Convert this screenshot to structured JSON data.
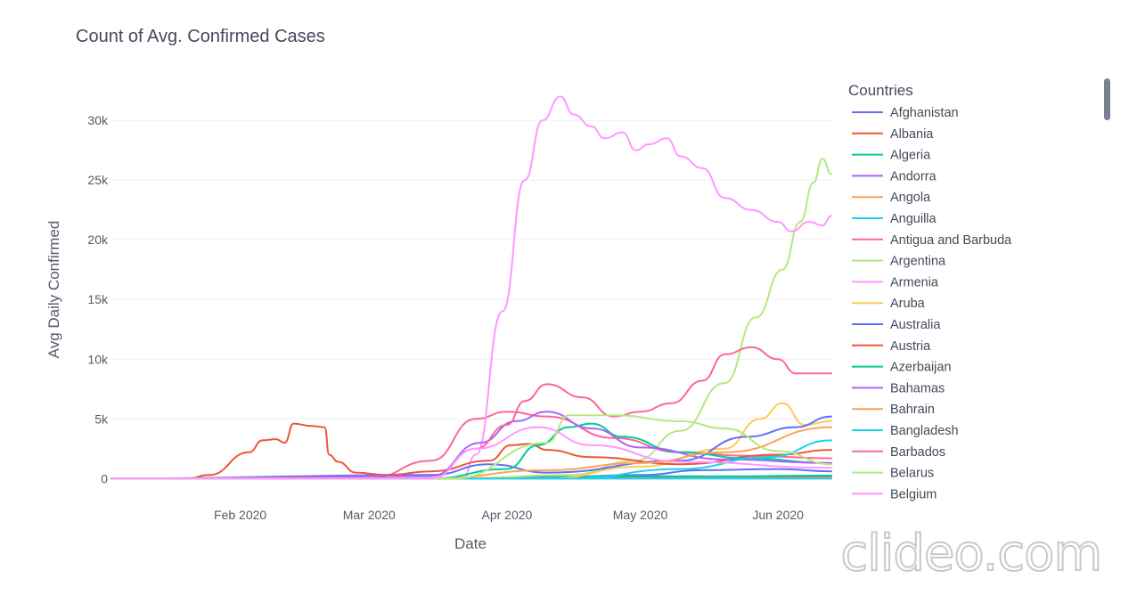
{
  "chart_data": {
    "type": "line",
    "title": "Count of Avg. Confirmed Cases",
    "xlabel": "Date",
    "ylabel": "Avg Daily Confirmed",
    "xlim": [
      "2020-01-03",
      "2020-06-13"
    ],
    "ylim": [
      -800,
      33000
    ],
    "xticks": [
      {
        "date": "2020-02-01",
        "label": "Feb 2020"
      },
      {
        "date": "2020-03-01",
        "label": "Mar 2020"
      },
      {
        "date": "2020-04-01",
        "label": "Apr 2020"
      },
      {
        "date": "2020-05-01",
        "label": "May 2020"
      },
      {
        "date": "2020-06-01",
        "label": "Jun 2020"
      }
    ],
    "yticks": [
      {
        "value": 0,
        "label": "0"
      },
      {
        "value": 5000,
        "label": "5k"
      },
      {
        "value": 10000,
        "label": "10k"
      },
      {
        "value": 15000,
        "label": "15k"
      },
      {
        "value": 20000,
        "label": "20k"
      },
      {
        "value": 25000,
        "label": "25k"
      },
      {
        "value": 30000,
        "label": "30k"
      }
    ],
    "legend_title": "Countries",
    "legend_position": "right",
    "series": [
      {
        "name": "Afghanistan",
        "color": "#636efa",
        "points": [
          [
            "2020-01-03",
            0
          ],
          [
            "2020-03-20",
            0
          ],
          [
            "2020-04-10",
            100
          ],
          [
            "2020-05-01",
            300
          ],
          [
            "2020-05-15",
            700
          ],
          [
            "2020-06-01",
            800
          ],
          [
            "2020-06-13",
            600
          ]
        ]
      },
      {
        "name": "Albania",
        "color": "#ef553b",
        "points": [
          [
            "2020-01-03",
            0
          ],
          [
            "2020-03-20",
            0
          ],
          [
            "2020-04-15",
            50
          ],
          [
            "2020-05-15",
            100
          ],
          [
            "2020-06-13",
            150
          ]
        ]
      },
      {
        "name": "Algeria",
        "color": "#00cc96",
        "points": [
          [
            "2020-01-03",
            0
          ],
          [
            "2020-03-20",
            0
          ],
          [
            "2020-04-10",
            150
          ],
          [
            "2020-05-01",
            200
          ],
          [
            "2020-05-20",
            180
          ],
          [
            "2020-06-13",
            250
          ]
        ]
      },
      {
        "name": "Andorra",
        "color": "#ab63fa",
        "points": [
          [
            "2020-01-03",
            0
          ],
          [
            "2020-03-20",
            0
          ],
          [
            "2020-04-10",
            50
          ],
          [
            "2020-06-13",
            0
          ]
        ]
      },
      {
        "name": "Angola",
        "color": "#ffa15a",
        "points": [
          [
            "2020-01-03",
            0
          ],
          [
            "2020-05-01",
            0
          ],
          [
            "2020-06-13",
            50
          ]
        ]
      },
      {
        "name": "Anguilla",
        "color": "#19d3f3",
        "points": [
          [
            "2020-01-03",
            0
          ],
          [
            "2020-06-13",
            0
          ]
        ]
      },
      {
        "name": "Antigua and Barbuda",
        "color": "#ff6692",
        "points": [
          [
            "2020-01-03",
            0
          ],
          [
            "2020-03-01",
            0
          ],
          [
            "2020-03-15",
            1500
          ],
          [
            "2020-03-25",
            5000
          ],
          [
            "2020-04-01",
            5600
          ],
          [
            "2020-04-10",
            5200
          ],
          [
            "2020-04-25",
            3400
          ],
          [
            "2020-05-10",
            2200
          ],
          [
            "2020-05-25",
            1900
          ],
          [
            "2020-06-13",
            1700
          ]
        ]
      },
      {
        "name": "Argentina",
        "color": "#b6e880",
        "points": [
          [
            "2020-01-03",
            0
          ],
          [
            "2020-03-20",
            0
          ],
          [
            "2020-04-15",
            300
          ],
          [
            "2020-04-30",
            1500
          ],
          [
            "2020-05-10",
            4000
          ],
          [
            "2020-05-20",
            8000
          ],
          [
            "2020-05-27",
            13500
          ],
          [
            "2020-06-02",
            17500
          ],
          [
            "2020-06-06",
            21500
          ],
          [
            "2020-06-09",
            24800
          ],
          [
            "2020-06-11",
            26800
          ],
          [
            "2020-06-13",
            25500
          ]
        ]
      },
      {
        "name": "Armenia",
        "color": "#ff97ff",
        "points": [
          [
            "2020-01-03",
            0
          ],
          [
            "2020-03-22",
            0
          ],
          [
            "2020-03-25",
            2000
          ],
          [
            "2020-03-31",
            14000
          ],
          [
            "2020-04-05",
            25000
          ],
          [
            "2020-04-09",
            30000
          ],
          [
            "2020-04-13",
            32000
          ],
          [
            "2020-04-16",
            30500
          ],
          [
            "2020-04-20",
            29500
          ],
          [
            "2020-04-23",
            28500
          ],
          [
            "2020-04-27",
            29000
          ],
          [
            "2020-04-30",
            27500
          ],
          [
            "2020-05-03",
            28000
          ],
          [
            "2020-05-07",
            28500
          ],
          [
            "2020-05-10",
            27000
          ],
          [
            "2020-05-15",
            26000
          ],
          [
            "2020-05-20",
            23500
          ],
          [
            "2020-05-26",
            22500
          ],
          [
            "2020-06-01",
            21500
          ],
          [
            "2020-06-04",
            20700
          ],
          [
            "2020-06-08",
            21500
          ],
          [
            "2020-06-11",
            21200
          ],
          [
            "2020-06-13",
            22000
          ]
        ]
      },
      {
        "name": "Aruba",
        "color": "#fecb52",
        "points": [
          [
            "2020-01-03",
            0
          ],
          [
            "2020-04-10",
            0
          ],
          [
            "2020-05-01",
            1000
          ],
          [
            "2020-05-20",
            2500
          ],
          [
            "2020-05-28",
            5000
          ],
          [
            "2020-06-02",
            6300
          ],
          [
            "2020-06-07",
            4500
          ],
          [
            "2020-06-13",
            4800
          ]
        ]
      },
      {
        "name": "Australia",
        "color": "#636efa",
        "points": [
          [
            "2020-01-03",
            0
          ],
          [
            "2020-03-15",
            300
          ],
          [
            "2020-03-28",
            1200
          ],
          [
            "2020-04-10",
            500
          ],
          [
            "2020-05-10",
            1500
          ],
          [
            "2020-05-25",
            3500
          ],
          [
            "2020-06-05",
            4300
          ],
          [
            "2020-06-13",
            5200
          ]
        ]
      },
      {
        "name": "Austria",
        "color": "#ef553b",
        "points": [
          [
            "2020-01-03",
            0
          ],
          [
            "2020-01-20",
            0
          ],
          [
            "2020-01-25",
            300
          ],
          [
            "2020-02-03",
            2200
          ],
          [
            "2020-02-06",
            3200
          ],
          [
            "2020-02-09",
            3300
          ],
          [
            "2020-02-11",
            3000
          ],
          [
            "2020-02-13",
            4600
          ],
          [
            "2020-02-17",
            4400
          ],
          [
            "2020-02-20",
            4300
          ],
          [
            "2020-02-21",
            2000
          ],
          [
            "2020-02-23",
            1400
          ],
          [
            "2020-02-27",
            500
          ],
          [
            "2020-03-05",
            300
          ],
          [
            "2020-03-15",
            600
          ],
          [
            "2020-03-28",
            1500
          ],
          [
            "2020-04-02",
            2800
          ],
          [
            "2020-04-06",
            2900
          ],
          [
            "2020-04-10",
            2400
          ],
          [
            "2020-04-20",
            1800
          ],
          [
            "2020-05-10",
            1200
          ],
          [
            "2020-06-01",
            2000
          ],
          [
            "2020-06-13",
            2400
          ]
        ]
      },
      {
        "name": "Azerbaijan",
        "color": "#00cc96",
        "points": [
          [
            "2020-01-03",
            0
          ],
          [
            "2020-03-15",
            0
          ],
          [
            "2020-04-01",
            800
          ],
          [
            "2020-04-08",
            2800
          ],
          [
            "2020-04-15",
            4300
          ],
          [
            "2020-04-20",
            4600
          ],
          [
            "2020-04-27",
            3500
          ],
          [
            "2020-05-10",
            2200
          ],
          [
            "2020-05-25",
            1700
          ],
          [
            "2020-06-13",
            1300
          ]
        ]
      },
      {
        "name": "Bahamas",
        "color": "#ab63fa",
        "points": [
          [
            "2020-01-03",
            0
          ],
          [
            "2020-03-15",
            200
          ],
          [
            "2020-03-26",
            3000
          ],
          [
            "2020-04-03",
            4800
          ],
          [
            "2020-04-10",
            5600
          ],
          [
            "2020-04-20",
            4200
          ],
          [
            "2020-05-01",
            2600
          ],
          [
            "2020-05-20",
            1600
          ],
          [
            "2020-06-13",
            1300
          ]
        ]
      },
      {
        "name": "Bahrain",
        "color": "#ffa15a",
        "points": [
          [
            "2020-01-03",
            0
          ],
          [
            "2020-03-15",
            0
          ],
          [
            "2020-04-10",
            700
          ],
          [
            "2020-05-01",
            1300
          ],
          [
            "2020-05-20",
            2200
          ],
          [
            "2020-06-13",
            4300
          ]
        ]
      },
      {
        "name": "Bangladesh",
        "color": "#19d3f3",
        "points": [
          [
            "2020-01-03",
            0
          ],
          [
            "2020-04-15",
            0
          ],
          [
            "2020-05-10",
            800
          ],
          [
            "2020-05-30",
            1800
          ],
          [
            "2020-06-13",
            3200
          ]
        ]
      },
      {
        "name": "Barbados",
        "color": "#ff6692",
        "points": [
          [
            "2020-01-03",
            0
          ],
          [
            "2020-03-15",
            0
          ],
          [
            "2020-03-25",
            2500
          ],
          [
            "2020-04-01",
            4500
          ],
          [
            "2020-04-05",
            6500
          ],
          [
            "2020-04-10",
            7900
          ],
          [
            "2020-04-18",
            6800
          ],
          [
            "2020-04-25",
            5200
          ],
          [
            "2020-05-01",
            5600
          ],
          [
            "2020-05-08",
            6300
          ],
          [
            "2020-05-15",
            8200
          ],
          [
            "2020-05-20",
            10400
          ],
          [
            "2020-05-26",
            11000
          ],
          [
            "2020-06-01",
            10000
          ],
          [
            "2020-06-05",
            8800
          ],
          [
            "2020-06-13",
            8800
          ]
        ]
      },
      {
        "name": "Belarus",
        "color": "#b6e880",
        "points": [
          [
            "2020-01-03",
            0
          ],
          [
            "2020-03-20",
            0
          ],
          [
            "2020-04-10",
            3000
          ],
          [
            "2020-04-15",
            5300
          ],
          [
            "2020-04-25",
            5300
          ],
          [
            "2020-05-10",
            4800
          ],
          [
            "2020-05-20",
            4200
          ],
          [
            "2020-06-01",
            2300
          ],
          [
            "2020-06-13",
            1200
          ]
        ]
      },
      {
        "name": "Belgium",
        "color": "#ff97ff",
        "points": [
          [
            "2020-01-03",
            0
          ],
          [
            "2020-03-15",
            0
          ],
          [
            "2020-03-25",
            2500
          ],
          [
            "2020-04-08",
            4300
          ],
          [
            "2020-04-20",
            2800
          ],
          [
            "2020-05-10",
            1400
          ],
          [
            "2020-06-13",
            900
          ]
        ]
      }
    ]
  },
  "watermark": "clideo.com"
}
